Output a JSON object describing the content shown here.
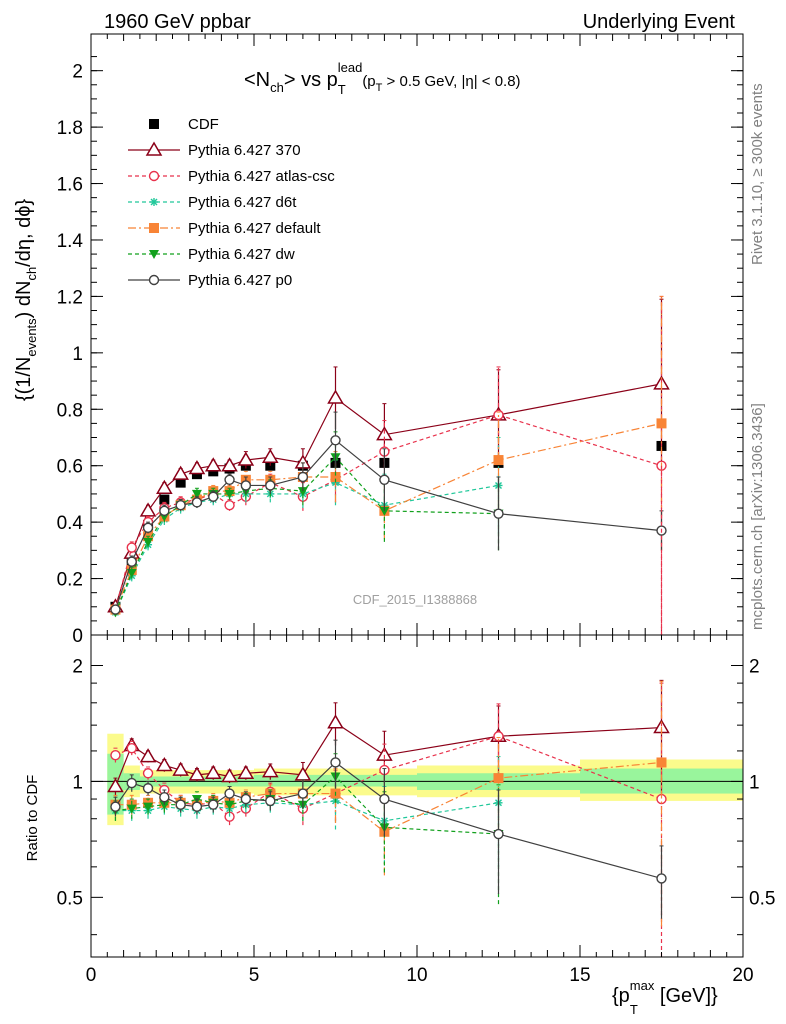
{
  "header": {
    "left": "1960 GeV ppbar",
    "right": "Underlying Event"
  },
  "plot_title": {
    "main": "<N",
    "main_sub": "ch",
    "main_mid": "> vs p",
    "main_sub2": "T",
    "main_sup": "lead",
    "cuts_prefix": "(p",
    "cuts_sub": "T",
    "cuts_rest": " > 0.5 GeV, |η| < 0.8)"
  },
  "side_labels": {
    "rivet": "Rivet 3.1.10, ≥ 300k events",
    "mcplots": "mcplots.cern.ch [arXiv:1306.3436]"
  },
  "watermark": "CDF_2015_I1388868",
  "ylabel_main": {
    "p1": "{(1/N",
    "sub1": "events",
    "p2": ") dN",
    "sub2": "ch",
    "p3": "/dη, dϕ}"
  },
  "ylabel_ratio": "Ratio to CDF",
  "xlabel": {
    "p1": "{p",
    "sub": "T",
    "sup": "max",
    "p2": " [GeV]}"
  },
  "chart_data": [
    {
      "type": "scatter",
      "panel": "main",
      "xlim": [
        0,
        20
      ],
      "ylim": [
        0,
        2.13
      ],
      "xticks": [
        "0",
        "5",
        "10",
        "15",
        "20"
      ],
      "yticks": [
        "0",
        "0.2",
        "0.4",
        "0.6",
        "0.8",
        "1",
        "1.2",
        "1.4",
        "1.6",
        "1.8",
        "2"
      ],
      "x": [
        0.75,
        1.25,
        1.75,
        2.25,
        2.75,
        3.25,
        3.75,
        4.25,
        4.75,
        5.5,
        6.5,
        7.5,
        9.0,
        12.5,
        17.5
      ],
      "series": [
        {
          "name": "CDF",
          "color": "#000000",
          "marker": "square-filled",
          "dash": "none",
          "values": [
            0.1,
            0.26,
            0.39,
            0.48,
            0.54,
            0.57,
            0.58,
            0.59,
            0.6,
            0.6,
            0.6,
            0.61,
            0.61,
            0.61,
            0.67
          ]
        },
        {
          "name": "Pythia 6.427 370",
          "color": "#8b0018",
          "marker": "triangle-open",
          "dash": "solid",
          "values": [
            0.1,
            0.29,
            0.44,
            0.52,
            0.57,
            0.59,
            0.6,
            0.6,
            0.62,
            0.63,
            0.61,
            0.84,
            0.71,
            0.78,
            0.89
          ],
          "err": [
            0.01,
            0.02,
            0.02,
            0.02,
            0.02,
            0.02,
            0.02,
            0.02,
            0.03,
            0.03,
            0.05,
            0.11,
            0.11,
            0.16,
            0.3
          ]
        },
        {
          "name": "Pythia 6.427 atlas-csc",
          "color": "#e8324c",
          "marker": "circle-open",
          "dash": "short",
          "values": [
            0.09,
            0.31,
            0.4,
            0.45,
            0.47,
            0.48,
            0.5,
            0.46,
            0.49,
            0.54,
            0.49,
            0.55,
            0.65,
            0.78,
            0.6
          ],
          "err": [
            0.01,
            0.02,
            0.02,
            0.02,
            0.02,
            0.02,
            0.02,
            0.02,
            0.03,
            0.03,
            0.05,
            0.08,
            0.11,
            0.17,
            0.6
          ]
        },
        {
          "name": "Pythia 6.427 d6t",
          "color": "#20c89a",
          "marker": "star",
          "dash": "short",
          "values": [
            0.08,
            0.21,
            0.32,
            0.41,
            0.45,
            0.47,
            0.48,
            0.5,
            0.5,
            0.5,
            0.5,
            0.54,
            0.46,
            0.53,
            null
          ],
          "err": [
            0.01,
            0.02,
            0.02,
            0.02,
            0.02,
            0.02,
            0.02,
            0.02,
            0.03,
            0.03,
            0.05,
            0.08,
            0.11,
            0.17,
            0.0
          ]
        },
        {
          "name": "Pythia 6.427 default",
          "color": "#f88436",
          "marker": "square-filled",
          "dash": "dashdot",
          "values": [
            0.09,
            0.23,
            0.35,
            0.42,
            0.46,
            0.48,
            0.51,
            0.51,
            0.55,
            0.55,
            0.56,
            0.56,
            0.44,
            0.62,
            0.75
          ],
          "err": [
            0.01,
            0.02,
            0.02,
            0.02,
            0.02,
            0.02,
            0.02,
            0.02,
            0.03,
            0.03,
            0.05,
            0.09,
            0.1,
            0.17,
            0.45
          ]
        },
        {
          "name": "Pythia 6.427 dw",
          "color": "#11a01c",
          "marker": "triangle-down-filled",
          "dash": "short",
          "values": [
            0.08,
            0.22,
            0.33,
            0.42,
            0.46,
            0.5,
            0.5,
            0.5,
            0.51,
            0.52,
            0.51,
            0.63,
            0.44,
            0.43,
            null
          ],
          "err": [
            0.01,
            0.02,
            0.02,
            0.02,
            0.02,
            0.02,
            0.02,
            0.02,
            0.03,
            0.03,
            0.05,
            0.09,
            0.11,
            0.13,
            0.0
          ]
        },
        {
          "name": "Pythia 6.427 p0",
          "color": "#404040",
          "marker": "circle-open",
          "dash": "solid",
          "values": [
            0.09,
            0.26,
            0.38,
            0.44,
            0.46,
            0.47,
            0.49,
            0.55,
            0.53,
            0.53,
            0.56,
            0.69,
            0.55,
            0.43,
            0.37
          ],
          "err": [
            0.01,
            0.02,
            0.02,
            0.02,
            0.02,
            0.02,
            0.02,
            0.02,
            0.03,
            0.03,
            0.05,
            0.1,
            0.11,
            0.13,
            0.07
          ]
        }
      ],
      "legend_position": "top-left",
      "grid": false
    },
    {
      "type": "scatter",
      "panel": "ratio",
      "ylabel": "Ratio to CDF",
      "ylim": [
        0.35,
        2.4
      ],
      "log_y": true,
      "yticks": [
        "0.5",
        "1",
        "2"
      ],
      "reference_line": 1,
      "uncertainty_bands": [
        {
          "x": [
            0.5,
            1.0
          ],
          "inner": [
            0.82,
            1.18
          ],
          "outer": [
            0.77,
            1.33
          ]
        },
        {
          "x": [
            1.0,
            1.5
          ],
          "inner": [
            0.95,
            1.05
          ],
          "outer": [
            0.91,
            1.1
          ]
        },
        {
          "x": [
            1.5,
            5.0
          ],
          "inner": [
            0.97,
            1.03
          ],
          "outer": [
            0.93,
            1.07
          ]
        },
        {
          "x": [
            5.0,
            10.0
          ],
          "inner": [
            0.97,
            1.04
          ],
          "outer": [
            0.92,
            1.08
          ]
        },
        {
          "x": [
            10.0,
            15.0
          ],
          "inner": [
            0.95,
            1.05
          ],
          "outer": [
            0.91,
            1.1
          ]
        },
        {
          "x": [
            15.0,
            20.0
          ],
          "inner": [
            0.93,
            1.08
          ],
          "outer": [
            0.89,
            1.14
          ]
        }
      ],
      "x": [
        0.75,
        1.25,
        1.75,
        2.25,
        2.75,
        3.25,
        3.75,
        4.25,
        4.75,
        5.5,
        6.5,
        7.5,
        9.0,
        12.5,
        17.5
      ],
      "series": [
        {
          "name": "Pythia 6.427 370",
          "color": "#8b0018",
          "marker": "triangle-open",
          "dash": "solid",
          "values": [
            0.97,
            1.24,
            1.16,
            1.1,
            1.07,
            1.04,
            1.05,
            1.03,
            1.05,
            1.06,
            1.04,
            1.42,
            1.17,
            1.31,
            1.38
          ],
          "err": [
            0.05,
            0.05,
            0.04,
            0.04,
            0.04,
            0.04,
            0.04,
            0.04,
            0.04,
            0.05,
            0.08,
            0.18,
            0.18,
            0.26,
            0.45
          ]
        },
        {
          "name": "Pythia 6.427 atlas-csc",
          "color": "#e8324c",
          "marker": "circle-open",
          "dash": "short",
          "values": [
            1.17,
            1.22,
            1.05,
            0.95,
            0.88,
            0.87,
            0.88,
            0.81,
            0.85,
            0.94,
            0.85,
            0.93,
            1.07,
            1.31,
            0.9
          ],
          "err": [
            0.05,
            0.05,
            0.04,
            0.04,
            0.04,
            0.04,
            0.04,
            0.04,
            0.04,
            0.05,
            0.08,
            0.14,
            0.18,
            0.28,
            0.9
          ]
        },
        {
          "name": "Pythia 6.427 d6t",
          "color": "#20c89a",
          "marker": "star",
          "dash": "short",
          "values": [
            0.84,
            0.84,
            0.84,
            0.86,
            0.85,
            0.84,
            0.86,
            0.85,
            0.87,
            0.88,
            0.87,
            0.89,
            0.79,
            0.88,
            null
          ],
          "err": [
            0.05,
            0.05,
            0.04,
            0.04,
            0.04,
            0.04,
            0.04,
            0.04,
            0.04,
            0.05,
            0.08,
            0.14,
            0.18,
            0.28,
            0.0
          ]
        },
        {
          "name": "Pythia 6.427 default",
          "color": "#f88436",
          "marker": "square-filled",
          "dash": "dashdot",
          "values": [
            0.87,
            0.87,
            0.88,
            0.88,
            0.88,
            0.87,
            0.89,
            0.88,
            0.91,
            0.93,
            0.93,
            0.93,
            0.74,
            1.02,
            1.12
          ],
          "err": [
            0.05,
            0.05,
            0.04,
            0.04,
            0.04,
            0.04,
            0.04,
            0.04,
            0.04,
            0.05,
            0.08,
            0.15,
            0.17,
            0.28,
            0.7
          ]
        },
        {
          "name": "Pythia 6.427 dw",
          "color": "#11a01c",
          "marker": "triangle-down-filled",
          "dash": "short",
          "values": [
            0.84,
            0.85,
            0.86,
            0.87,
            0.87,
            0.9,
            0.88,
            0.87,
            0.89,
            0.9,
            0.87,
            1.03,
            0.76,
            0.73,
            null
          ],
          "err": [
            0.05,
            0.05,
            0.04,
            0.04,
            0.04,
            0.04,
            0.04,
            0.04,
            0.04,
            0.05,
            0.08,
            0.15,
            0.18,
            0.25,
            0.0
          ]
        },
        {
          "name": "Pythia 6.427 p0",
          "color": "#404040",
          "marker": "circle-open",
          "dash": "solid",
          "values": [
            0.86,
            0.99,
            0.96,
            0.91,
            0.87,
            0.86,
            0.87,
            0.93,
            0.9,
            0.89,
            0.93,
            1.12,
            0.9,
            0.73,
            0.56
          ],
          "err": [
            0.05,
            0.05,
            0.04,
            0.04,
            0.04,
            0.04,
            0.04,
            0.04,
            0.04,
            0.05,
            0.08,
            0.16,
            0.18,
            0.22,
            0.12
          ]
        }
      ],
      "xlim": [
        0,
        20
      ],
      "xticks": [
        "0",
        "5",
        "10",
        "15",
        "20"
      ]
    }
  ]
}
